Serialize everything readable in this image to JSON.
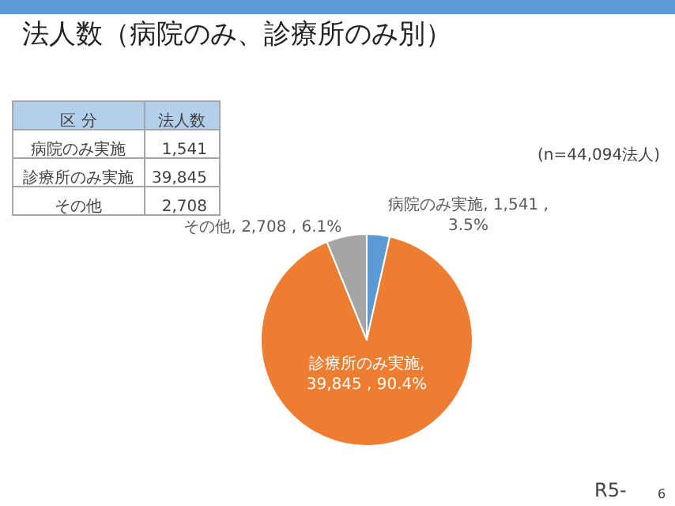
{
  "chart_data": [
    {
      "type": "other",
      "annotations": [
        "区 分",
        "法人数"
      ],
      "categories": [
        "病院のみ実施",
        "診療所のみ実施",
        "その他"
      ],
      "value_labels": [
        "1,541",
        "39,845",
        "2,708"
      ]
    },
    {
      "type": "pie",
      "title": "法人数（病院のみ、診療所のみ別）",
      "categories": [
        "病院のみ実施",
        "診療所のみ実施",
        "その他"
      ],
      "values": [
        1541,
        39845,
        2708
      ],
      "colors": [
        "#5b9bd5",
        "#ed7d31",
        "#a5a5a5"
      ],
      "value_labels": [
        ", 1,541 ,\n3.5%",
        ",\n39,845 , 90.4%",
        ", 2,708 , 6.1%"
      ],
      "legend": false,
      "annotations": [
        "(n=44,094法人)",
        "R5-",
        "6"
      ]
    }
  ]
}
